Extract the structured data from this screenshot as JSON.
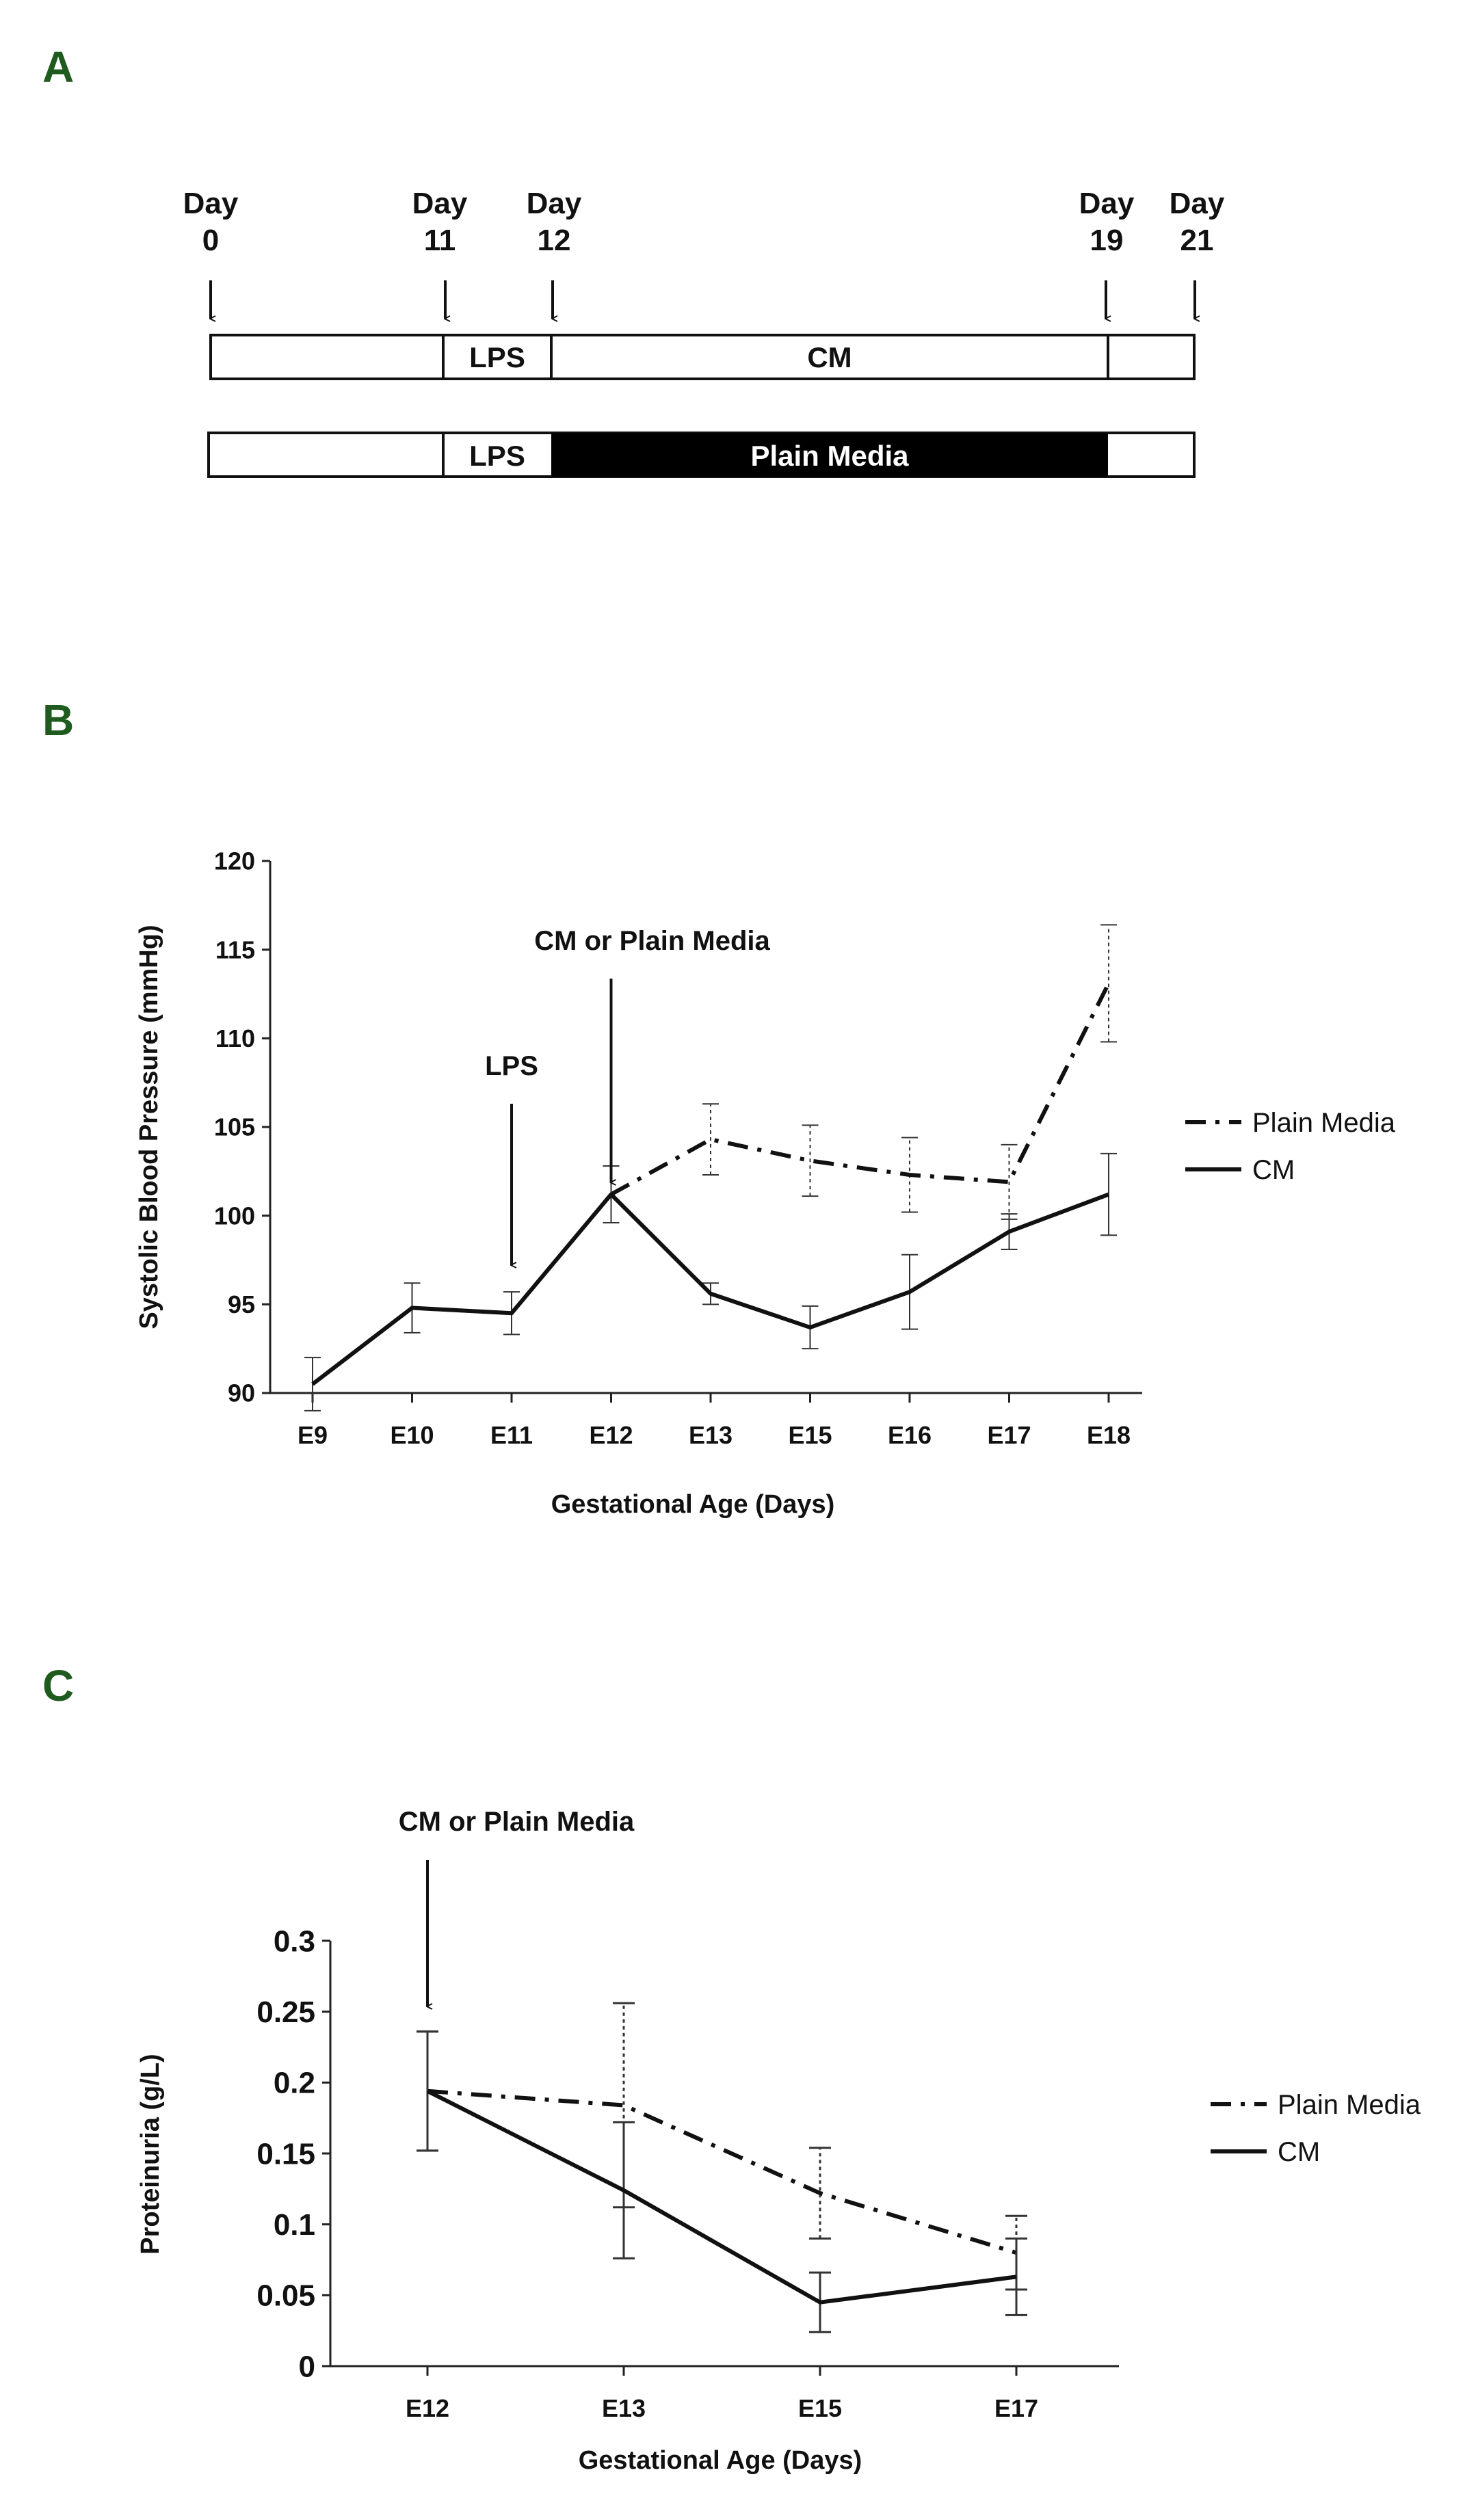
{
  "panels": {
    "a": "A",
    "b": "B",
    "c": "C"
  },
  "timeline": {
    "days": [
      {
        "word": "Day",
        "num": "0"
      },
      {
        "word": "Day",
        "num": "11"
      },
      {
        "word": "Day",
        "num": "12"
      },
      {
        "word": "Day",
        "num": "19"
      },
      {
        "word": "Day",
        "num": "21"
      }
    ],
    "bar1": {
      "lps": "LPS",
      "treatment": "CM"
    },
    "bar2": {
      "lps": "LPS",
      "treatment": "Plain Media"
    },
    "colors": {
      "plain_media_fill": "#000000"
    }
  },
  "chart_data": [
    {
      "id": "B",
      "type": "line",
      "categories": [
        "E9",
        "E10",
        "E11",
        "E12",
        "E13",
        "E15",
        "E16",
        "E17",
        "E18"
      ],
      "xlabel": "Gestational Age (Days)",
      "ylabel": "Systolic Blood Pressure (mmHg)",
      "ylim": [
        90,
        120
      ],
      "yticks": [
        "90",
        "95",
        "100",
        "105",
        "110",
        "115",
        "120"
      ],
      "series": [
        {
          "name": "Plain Media",
          "style": "dash-dot",
          "values": [
            null,
            null,
            null,
            101.2,
            104.3,
            103.1,
            102.3,
            101.9,
            113.1
          ],
          "errors": [
            null,
            null,
            null,
            1.6,
            2.0,
            2.0,
            2.1,
            2.1,
            3.3
          ]
        },
        {
          "name": "CM",
          "style": "solid",
          "values": [
            90.5,
            94.8,
            94.5,
            101.2,
            95.6,
            93.7,
            95.7,
            99.1,
            101.2
          ],
          "errors": [
            1.5,
            1.4,
            1.2,
            1.6,
            0.6,
            1.2,
            2.1,
            1.0,
            2.3
          ]
        }
      ],
      "legend": "right",
      "annotations": [
        {
          "text": "LPS",
          "category": "E11"
        },
        {
          "text": "CM or Plain Media",
          "category": "E12"
        }
      ]
    },
    {
      "id": "C",
      "type": "line",
      "categories": [
        "E12",
        "E13",
        "E15",
        "E17"
      ],
      "xlabel": "Gestational Age (Days)",
      "ylabel": "Proteinuria  (g/L)",
      "ylim": [
        0,
        0.3
      ],
      "yticks": [
        "0",
        "0.05",
        "0.1",
        "0.15",
        "0.2",
        "0.25",
        "0.3"
      ],
      "series": [
        {
          "name": "Plain Media",
          "style": "dash-dot",
          "values": [
            0.194,
            0.184,
            0.122,
            0.08
          ],
          "errors": [
            0.042,
            0.072,
            0.032,
            0.026
          ]
        },
        {
          "name": "CM",
          "style": "solid",
          "values": [
            0.194,
            0.124,
            0.045,
            0.063
          ],
          "errors": [
            0.042,
            0.048,
            0.021,
            0.027
          ]
        }
      ],
      "legend": "right",
      "annotations": [
        {
          "text": "CM or Plain Media",
          "category": "E12"
        }
      ]
    }
  ]
}
